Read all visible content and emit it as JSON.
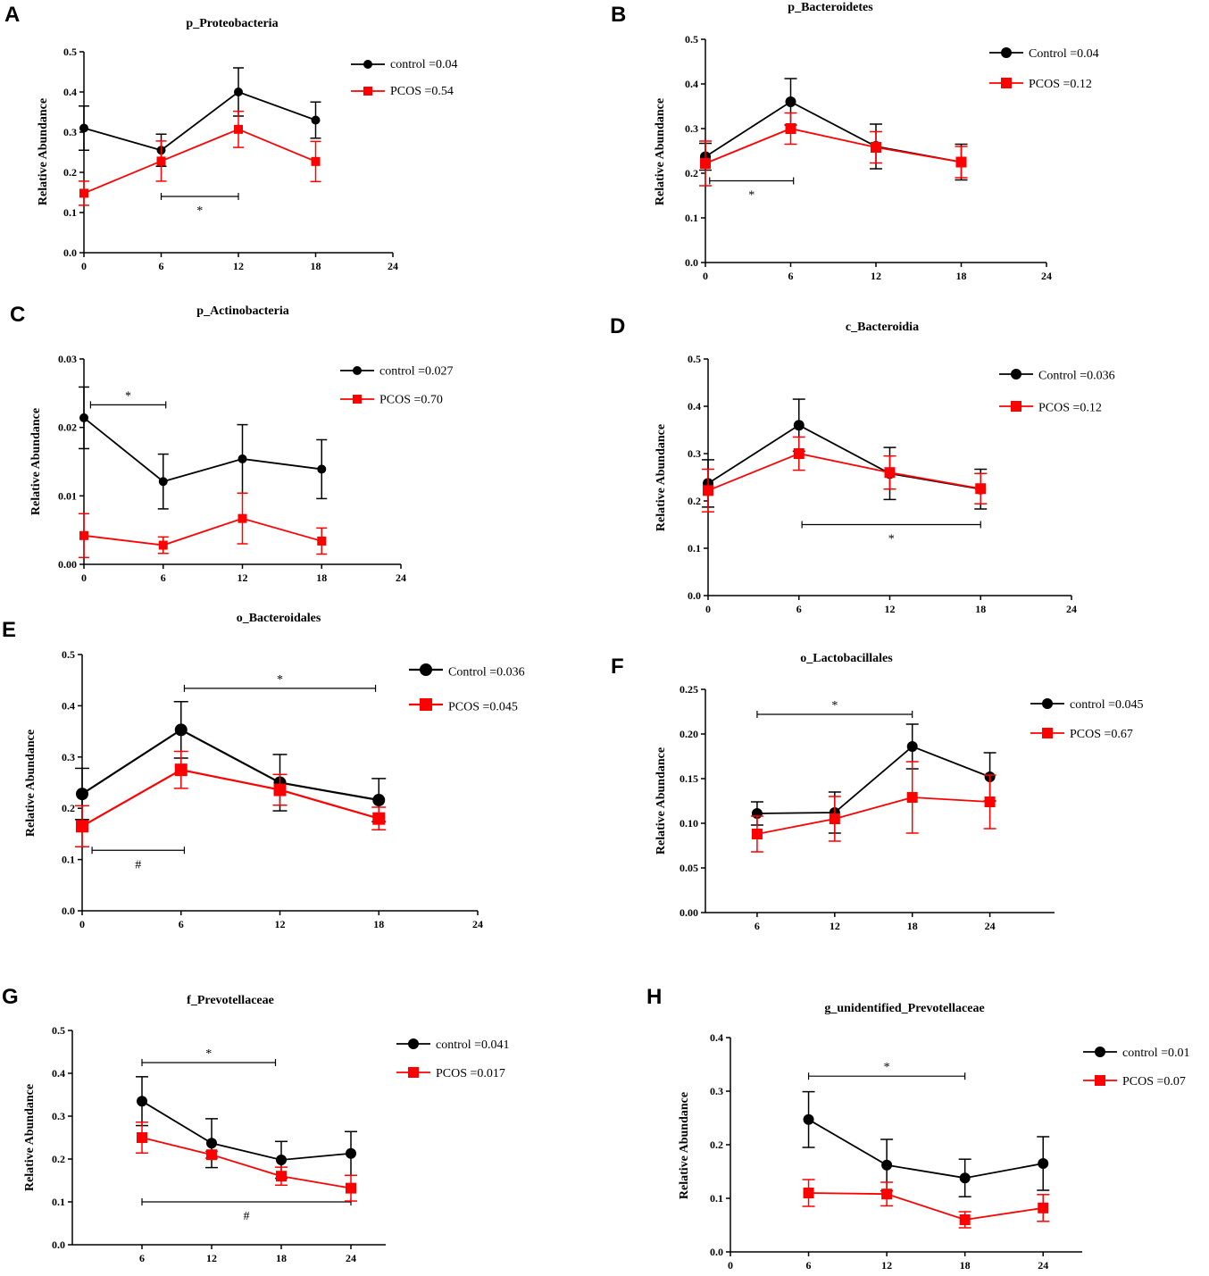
{
  "colors": {
    "control": "#000000",
    "pcos": "#ff0000"
  },
  "chart_data": [
    {
      "panel": "A",
      "type": "line",
      "title": "p_Proteobacteria",
      "ylabel": "Relative Abundance",
      "x_ticks": [
        "0",
        "6",
        "12",
        "18",
        "24"
      ],
      "xlim": [
        0,
        24
      ],
      "y_ticks": [
        "0.0",
        "0.1",
        "0.2",
        "0.3",
        "0.4",
        "0.5"
      ],
      "ylim": [
        0,
        0.5
      ],
      "series": [
        {
          "name": "control =0.04",
          "group": "control",
          "x": [
            0,
            6,
            12,
            18
          ],
          "values": [
            0.31,
            0.255,
            0.4,
            0.33
          ],
          "err": [
            0.055,
            0.04,
            0.06,
            0.045
          ]
        },
        {
          "name": "PCOS =0.54",
          "group": "pcos",
          "x": [
            0,
            6,
            12,
            18
          ],
          "values": [
            0.148,
            0.228,
            0.307,
            0.227
          ],
          "err": [
            0.03,
            0.05,
            0.045,
            0.05
          ]
        }
      ],
      "annotations": [
        {
          "text": "*",
          "x1": 6,
          "x2": 12,
          "y": 0.14,
          "label_pos": "below"
        }
      ]
    },
    {
      "panel": "B",
      "type": "line",
      "title": "p_Bacteroidetes",
      "ylabel": "Relative Abundance",
      "x_ticks": [
        "0",
        "6",
        "12",
        "18",
        "24"
      ],
      "xlim": [
        0,
        24
      ],
      "y_ticks": [
        "0.0",
        "0.1",
        "0.2",
        "0.3",
        "0.4",
        "0.5"
      ],
      "ylim": [
        0,
        0.5
      ],
      "series": [
        {
          "name": "Control =0.04",
          "group": "control",
          "x": [
            0,
            6,
            12,
            18
          ],
          "values": [
            0.237,
            0.36,
            0.26,
            0.225
          ],
          "err": [
            0.03,
            0.052,
            0.05,
            0.04
          ]
        },
        {
          "name": "PCOS =0.12",
          "group": "pcos",
          "x": [
            0,
            6,
            12,
            18
          ],
          "values": [
            0.222,
            0.3,
            0.258,
            0.225
          ],
          "err": [
            0.05,
            0.035,
            0.035,
            0.035
          ]
        }
      ],
      "annotations": [
        {
          "text": "*",
          "x1": 0.3,
          "x2": 6.2,
          "y": 0.183,
          "label_pos": "below"
        }
      ]
    },
    {
      "panel": "C",
      "type": "line",
      "title": "p_Actinobacteria",
      "ylabel": "Relative Abundance",
      "x_ticks": [
        "0",
        "6",
        "12",
        "18",
        "24"
      ],
      "xlim": [
        0,
        24
      ],
      "y_ticks": [
        "0.00",
        "0.01",
        "0.02",
        "0.03"
      ],
      "ylim": [
        0,
        0.03
      ],
      "series": [
        {
          "name": "control =0.027",
          "group": "control",
          "x": [
            0,
            6,
            12,
            18
          ],
          "values": [
            0.0214,
            0.0121,
            0.0154,
            0.0139
          ],
          "err": [
            0.0045,
            0.004,
            0.005,
            0.0043
          ]
        },
        {
          "name": "PCOS =0.70",
          "group": "pcos",
          "x": [
            0,
            6,
            12,
            18
          ],
          "values": [
            0.0042,
            0.0028,
            0.0067,
            0.0034
          ],
          "err": [
            0.0032,
            0.0012,
            0.0037,
            0.0019
          ]
        }
      ],
      "annotations": [
        {
          "text": "*",
          "x1": 0.5,
          "x2": 6.2,
          "y": 0.0233,
          "label_pos": "above"
        }
      ]
    },
    {
      "panel": "D",
      "type": "line",
      "title": "c_Bacteroidia",
      "ylabel": "Relative Abundance",
      "x_ticks": [
        "0",
        "6",
        "12",
        "18",
        "24"
      ],
      "xlim": [
        0,
        24
      ],
      "y_ticks": [
        "0.0",
        "0.1",
        "0.2",
        "0.3",
        "0.4",
        "0.5"
      ],
      "ylim": [
        0,
        0.5
      ],
      "series": [
        {
          "name": "Control =0.036",
          "group": "control",
          "x": [
            0,
            6,
            12,
            18
          ],
          "values": [
            0.237,
            0.36,
            0.258,
            0.225
          ],
          "err": [
            0.05,
            0.055,
            0.055,
            0.042
          ]
        },
        {
          "name": "PCOS =0.12",
          "group": "pcos",
          "x": [
            0,
            6,
            12,
            18
          ],
          "values": [
            0.222,
            0.3,
            0.26,
            0.226
          ],
          "err": [
            0.045,
            0.035,
            0.035,
            0.032
          ]
        }
      ],
      "annotations": [
        {
          "text": "*",
          "x1": 6.2,
          "x2": 18,
          "y": 0.15,
          "label_pos": "below"
        }
      ]
    },
    {
      "panel": "E",
      "type": "line",
      "title": "o_Bacteroidales",
      "ylabel": "Relative Abundance",
      "x_ticks": [
        "0",
        "6",
        "12",
        "18",
        "24"
      ],
      "xlim": [
        0,
        24
      ],
      "y_ticks": [
        "0.0",
        "0.1",
        "0.2",
        "0.3",
        "0.4",
        "0.5"
      ],
      "ylim": [
        0,
        0.5
      ],
      "series": [
        {
          "name": "Control =0.036",
          "group": "control",
          "x": [
            0,
            6,
            12,
            18
          ],
          "values": [
            0.228,
            0.353,
            0.25,
            0.216
          ],
          "err": [
            0.05,
            0.055,
            0.055,
            0.042
          ]
        },
        {
          "name": "PCOS =0.045",
          "group": "pcos",
          "x": [
            0,
            6,
            12,
            18
          ],
          "values": [
            0.165,
            0.275,
            0.236,
            0.18
          ],
          "err": [
            0.04,
            0.036,
            0.03,
            0.022
          ]
        }
      ],
      "annotations": [
        {
          "text": "*",
          "x1": 6.2,
          "x2": 17.8,
          "y": 0.434,
          "label_pos": "above"
        },
        {
          "text": "#",
          "x1": 0.6,
          "x2": 6.2,
          "y": 0.118,
          "label_pos": "below"
        }
      ]
    },
    {
      "panel": "F",
      "type": "line",
      "title": "o_Lactobacillales",
      "ylabel": "Relative Abundance",
      "x_ticks": [
        "6",
        "12",
        "18",
        "24"
      ],
      "xlim": [
        2,
        29
      ],
      "y_ticks": [
        "0.00",
        "0.05",
        "0.10",
        "0.15",
        "0.20",
        "0.25"
      ],
      "ylim": [
        0,
        0.25
      ],
      "series": [
        {
          "name": "control =0.045",
          "group": "control",
          "x": [
            6,
            12,
            18,
            24
          ],
          "values": [
            0.111,
            0.112,
            0.186,
            0.152
          ],
          "err": [
            0.013,
            0.023,
            0.025,
            0.027
          ]
        },
        {
          "name": "PCOS =0.67",
          "group": "pcos",
          "x": [
            6,
            12,
            18,
            24
          ],
          "values": [
            0.088,
            0.105,
            0.129,
            0.124
          ],
          "err": [
            0.02,
            0.025,
            0.04,
            0.03
          ]
        }
      ],
      "annotations": [
        {
          "text": "*",
          "x1": 6,
          "x2": 18,
          "y": 0.222,
          "label_pos": "above"
        }
      ]
    },
    {
      "panel": "G",
      "type": "line",
      "title": "f_Prevotellaceae",
      "ylabel": "Relative Abundance",
      "x_ticks": [
        "6",
        "12",
        "18",
        "24"
      ],
      "xlim": [
        0,
        27
      ],
      "y_ticks": [
        "0.0",
        "0.1",
        "0.2",
        "0.3",
        "0.4",
        "0.5"
      ],
      "ylim": [
        0,
        0.5
      ],
      "series": [
        {
          "name": "control =0.041",
          "group": "control",
          "x": [
            6,
            12,
            18,
            24
          ],
          "values": [
            0.335,
            0.237,
            0.198,
            0.213
          ],
          "err": [
            0.057,
            0.057,
            0.043,
            0.051
          ]
        },
        {
          "name": "PCOS =0.017",
          "group": "pcos",
          "x": [
            6,
            12,
            18,
            24
          ],
          "values": [
            0.25,
            0.21,
            0.16,
            0.132
          ],
          "err": [
            0.036,
            0.008,
            0.021,
            0.03
          ]
        }
      ],
      "annotations": [
        {
          "text": "*",
          "x1": 6,
          "x2": 17.5,
          "y": 0.425,
          "label_pos": "above"
        },
        {
          "text": "#",
          "x1": 6,
          "x2": 24,
          "y": 0.1,
          "label_pos": "below"
        }
      ]
    },
    {
      "panel": "H",
      "type": "line",
      "title": "g_unidentified_Prevotellaceae",
      "ylabel": "Relative Abundance",
      "x_ticks": [
        "0",
        "6",
        "12",
        "18",
        "24"
      ],
      "xlim": [
        0,
        27
      ],
      "y_ticks": [
        "0.0",
        "0.1",
        "0.2",
        "0.3",
        "0.4"
      ],
      "ylim": [
        0,
        0.4
      ],
      "series": [
        {
          "name": "control =0.01",
          "group": "control",
          "x": [
            6,
            12,
            18,
            24
          ],
          "values": [
            0.247,
            0.162,
            0.138,
            0.165
          ],
          "err": [
            0.052,
            0.048,
            0.035,
            0.05
          ]
        },
        {
          "name": "PCOS =0.07",
          "group": "pcos",
          "x": [
            6,
            12,
            18,
            24
          ],
          "values": [
            0.11,
            0.108,
            0.06,
            0.082
          ],
          "err": [
            0.025,
            0.022,
            0.015,
            0.025
          ]
        }
      ],
      "annotations": [
        {
          "text": "*",
          "x1": 6,
          "x2": 18,
          "y": 0.328,
          "label_pos": "above"
        }
      ]
    }
  ]
}
